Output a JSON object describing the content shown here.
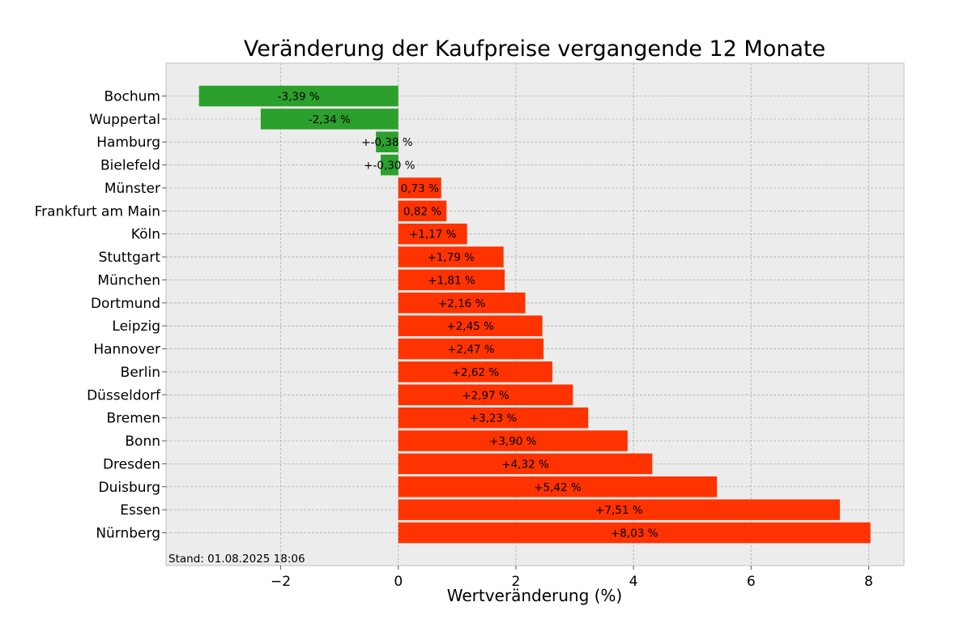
{
  "chart_data": {
    "type": "bar",
    "orientation": "horizontal",
    "title": "Veränderung der Kaufpreise vergangende 12 Monate",
    "xlabel": "Wertveränderung (%)",
    "ylabel": "",
    "xlim": [
      -3.95,
      8.6
    ],
    "xticks": [
      -2,
      0,
      2,
      4,
      6,
      8
    ],
    "xtick_labels": [
      "−2",
      "0",
      "2",
      "4",
      "6",
      "8"
    ],
    "grid": true,
    "categories": [
      "Bochum",
      "Wuppertal",
      "Hamburg",
      "Bielefeld",
      "Münster",
      "Frankfurt am Main",
      "Köln",
      "Stuttgart",
      "München",
      "Dortmund",
      "Leipzig",
      "Hannover",
      "Berlin",
      "Düsseldorf",
      "Bremen",
      "Bonn",
      "Dresden",
      "Duisburg",
      "Essen",
      "Nürnberg"
    ],
    "values": [
      -3.39,
      -2.34,
      -0.38,
      -0.3,
      0.73,
      0.82,
      1.17,
      1.79,
      1.81,
      2.16,
      2.45,
      2.47,
      2.62,
      2.97,
      3.23,
      3.9,
      4.32,
      5.42,
      7.51,
      8.03
    ],
    "data_labels": [
      "-3,39 %",
      "-2,34 %",
      "+-0,38 %",
      "+-0,30 %",
      "0,73 %",
      "0,82 %",
      "+1,17 %",
      "+1,79 %",
      "+1,81 %",
      "+2,16 %",
      "+2,45 %",
      "+2,47 %",
      "+2,62 %",
      "+2,97 %",
      "+3,23 %",
      "+3,90 %",
      "+4,32 %",
      "+5,42 %",
      "+7,51 %",
      "+8,03 %"
    ],
    "colors": {
      "negative": "#2ca02c",
      "positive": "#ff3300"
    },
    "annotation": "Stand: 01.08.2025 18:06"
  }
}
